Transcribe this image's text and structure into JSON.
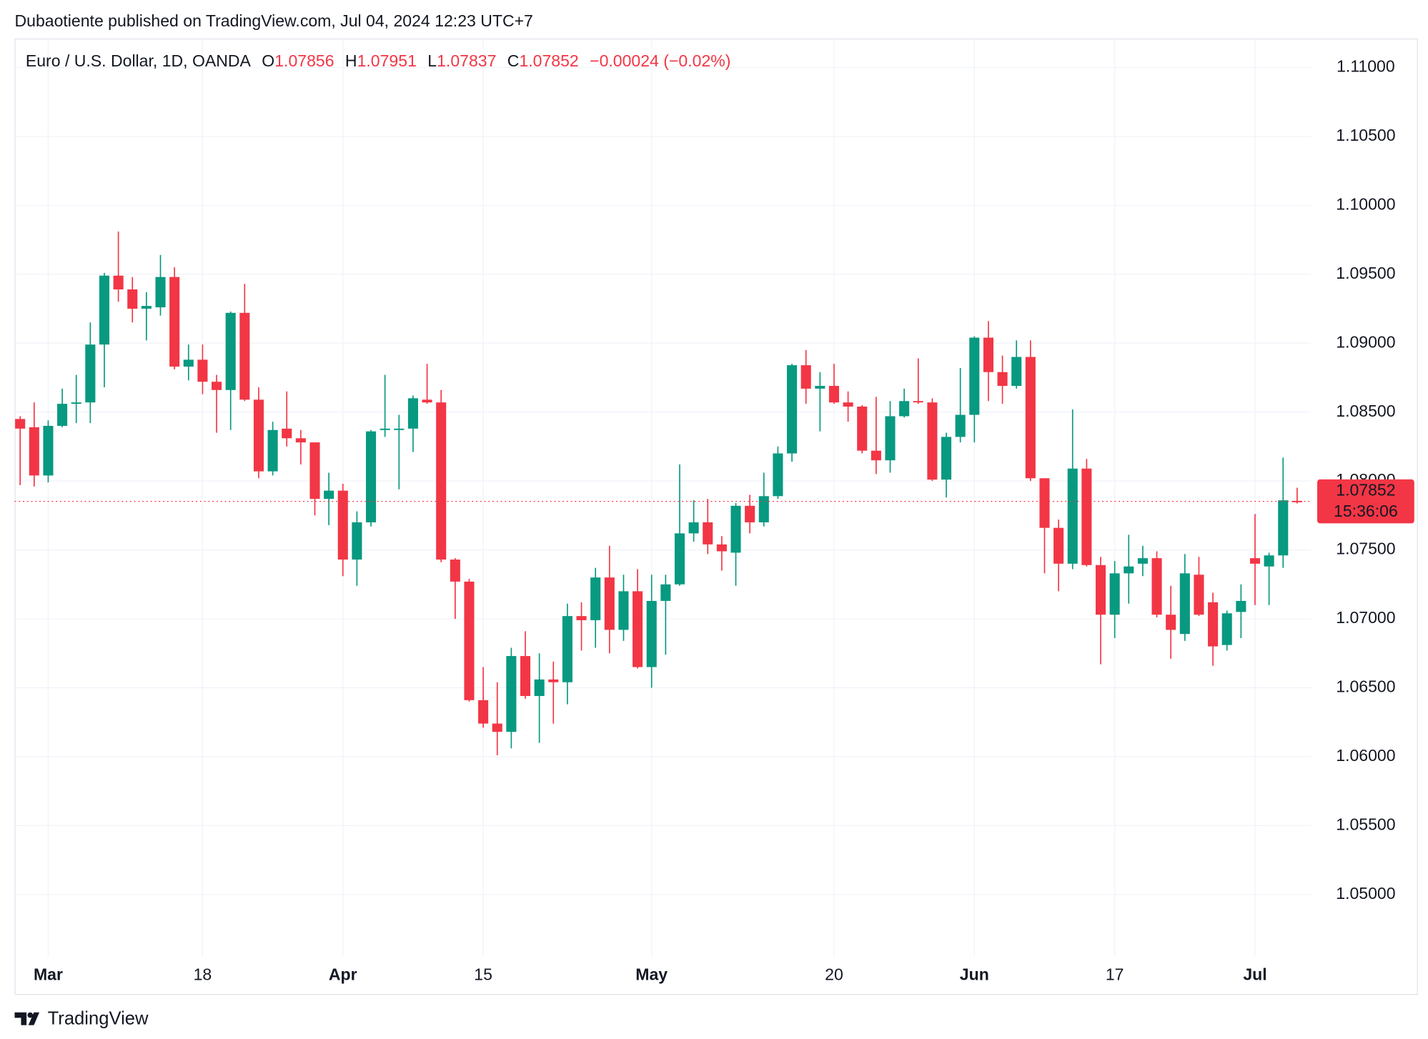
{
  "attribution": "Dubaotiente published on TradingView.com, Jul 04, 2024 12:23 UTC+7",
  "footer": "TradingView",
  "chart_data": {
    "type": "candlestick",
    "symbol": "Euro / U.S. Dollar, 1D, OANDA",
    "ohlc_labels": [
      "O",
      "H",
      "L",
      "C"
    ],
    "change": "−0.00024 (−0.02%)",
    "countdown": "15:36:06",
    "up_color": "#089981",
    "down_color": "#f23645",
    "grid": true,
    "categories": [
      null,
      null,
      "Mar",
      null,
      null,
      null,
      null,
      null,
      null,
      null,
      null,
      null,
      null,
      "18",
      null,
      null,
      null,
      null,
      null,
      null,
      null,
      null,
      null,
      "Apr",
      null,
      null,
      null,
      null,
      null,
      null,
      null,
      null,
      null,
      "15",
      null,
      null,
      null,
      null,
      null,
      null,
      null,
      null,
      null,
      null,
      null,
      "May",
      null,
      null,
      null,
      null,
      null,
      null,
      null,
      null,
      null,
      null,
      null,
      null,
      "20",
      null,
      null,
      null,
      null,
      null,
      null,
      null,
      null,
      null,
      "Jun",
      null,
      null,
      null,
      null,
      null,
      null,
      null,
      null,
      null,
      "17",
      null,
      null,
      null,
      null,
      null,
      null,
      null,
      null,
      null,
      "Jul",
      null,
      null,
      null
    ],
    "open": [
      1.0845,
      1.0839,
      1.0804,
      1.084,
      1.0856,
      1.0857,
      1.0899,
      1.0949,
      1.0939,
      1.0925,
      1.0926,
      1.0948,
      1.0883,
      1.0888,
      1.0872,
      1.0866,
      1.0922,
      1.0859,
      1.0807,
      1.0838,
      1.0831,
      1.0828,
      1.0787,
      1.0793,
      1.0743,
      1.077,
      1.0837,
      1.0837,
      1.0838,
      1.0859,
      1.0857,
      1.0743,
      1.0727,
      1.0641,
      1.0624,
      1.0618,
      1.0673,
      1.0644,
      1.0656,
      1.0654,
      1.0702,
      1.0699,
      1.073,
      1.0692,
      1.072,
      1.0665,
      1.0713,
      1.0725,
      1.0762,
      1.077,
      1.0754,
      1.0748,
      1.0782,
      1.077,
      1.0789,
      1.082,
      1.0884,
      1.0867,
      1.0869,
      1.0857,
      1.0854,
      1.0822,
      1.0815,
      1.0847,
      1.0858,
      1.0857,
      1.0801,
      1.0832,
      1.0848,
      1.0904,
      1.0879,
      1.0869,
      1.089,
      1.0802,
      1.0766,
      1.074,
      1.0809,
      1.0739,
      1.0703,
      1.0733,
      1.074,
      1.0744,
      1.0703,
      1.0689,
      1.0732,
      1.0712,
      1.0681,
      1.0705,
      1.0744,
      1.0738,
      1.0746,
      1.07856
    ],
    "high": [
      1.0847,
      1.0857,
      1.0844,
      1.0867,
      1.0877,
      1.0915,
      1.0951,
      1.0981,
      1.0948,
      1.0937,
      1.0964,
      1.0955,
      1.0899,
      1.0899,
      1.0877,
      1.0923,
      1.0943,
      1.0868,
      1.0843,
      1.0865,
      1.0837,
      1.0828,
      1.0806,
      1.0798,
      1.0778,
      1.0837,
      1.0877,
      1.0848,
      1.0862,
      1.0885,
      1.0866,
      1.0744,
      1.0729,
      1.0665,
      1.0654,
      1.0679,
      1.0691,
      1.0675,
      1.0669,
      1.0711,
      1.0712,
      1.0737,
      1.0753,
      1.0732,
      1.0736,
      1.0732,
      1.0732,
      1.0812,
      1.0786,
      1.0787,
      1.076,
      1.0784,
      1.079,
      1.0806,
      1.0825,
      1.0885,
      1.0895,
      1.0879,
      1.0885,
      1.0865,
      1.0855,
      1.0861,
      1.0858,
      1.0867,
      1.0889,
      1.086,
      1.0835,
      1.0882,
      1.0905,
      1.0916,
      1.0891,
      1.0902,
      1.0902,
      1.0802,
      1.0772,
      1.0852,
      1.0816,
      1.0745,
      1.0742,
      1.0761,
      1.0753,
      1.0749,
      1.0724,
      1.0747,
      1.0745,
      1.0719,
      1.0706,
      1.0725,
      1.0776,
      1.0748,
      1.0817,
      1.07951
    ],
    "low": [
      1.0797,
      1.0796,
      1.0799,
      1.0839,
      1.0842,
      1.0842,
      1.0868,
      1.093,
      1.0915,
      1.0902,
      1.092,
      1.0881,
      1.0873,
      1.0863,
      1.0835,
      1.0837,
      1.0858,
      1.0802,
      1.0804,
      1.0825,
      1.0812,
      1.0775,
      1.0768,
      1.0731,
      1.0724,
      1.0767,
      1.0832,
      1.0794,
      1.0821,
      1.0856,
      1.0741,
      1.07,
      1.064,
      1.0621,
      1.0601,
      1.0606,
      1.0642,
      1.061,
      1.0624,
      1.0638,
      1.0677,
      1.0679,
      1.0675,
      1.0684,
      1.0664,
      1.065,
      1.0674,
      1.0724,
      1.0756,
      1.0747,
      1.0735,
      1.0724,
      1.0762,
      1.0767,
      1.0787,
      1.0814,
      1.0856,
      1.0836,
      1.0856,
      1.0843,
      1.082,
      1.0805,
      1.0806,
      1.0846,
      1.0856,
      1.08,
      1.0788,
      1.0828,
      1.0828,
      1.0858,
      1.0856,
      1.0867,
      1.08,
      1.0733,
      1.072,
      1.0736,
      1.0738,
      1.0667,
      1.0686,
      1.0711,
      1.0731,
      1.0701,
      1.0671,
      1.0684,
      1.0702,
      1.0666,
      1.0677,
      1.0686,
      1.071,
      1.071,
      1.0737,
      1.07837
    ],
    "close": [
      1.0838,
      1.0804,
      1.084,
      1.0856,
      1.0857,
      1.0899,
      1.0949,
      1.0939,
      1.0925,
      1.0927,
      1.0948,
      1.0883,
      1.0888,
      1.0872,
      1.0866,
      1.0922,
      1.0859,
      1.0807,
      1.0837,
      1.0831,
      1.0828,
      1.0787,
      1.0793,
      1.0743,
      1.077,
      1.0836,
      1.0838,
      1.0838,
      1.086,
      1.0857,
      1.0743,
      1.0727,
      1.0641,
      1.0624,
      1.0618,
      1.0673,
      1.0644,
      1.0656,
      1.0654,
      1.0702,
      1.0699,
      1.073,
      1.0692,
      1.072,
      1.0665,
      1.0713,
      1.0725,
      1.0762,
      1.077,
      1.0754,
      1.0749,
      1.0782,
      1.077,
      1.0789,
      1.082,
      1.0884,
      1.0867,
      1.0869,
      1.0857,
      1.0854,
      1.0822,
      1.0815,
      1.0847,
      1.0858,
      1.0857,
      1.0801,
      1.0832,
      1.0848,
      1.0904,
      1.0879,
      1.0869,
      1.089,
      1.0802,
      1.0766,
      1.074,
      1.0809,
      1.0739,
      1.0703,
      1.0733,
      1.0738,
      1.0744,
      1.0703,
      1.0692,
      1.0733,
      1.0703,
      1.068,
      1.0704,
      1.0713,
      1.074,
      1.0746,
      1.0786,
      1.07852
    ],
    "ylim": [
      1.0455,
      1.1121
    ],
    "yticks": [
      {
        "value": 1.05,
        "label": "1.05000"
      },
      {
        "value": 1.055,
        "label": "1.05500"
      },
      {
        "value": 1.06,
        "label": "1.06000"
      },
      {
        "value": 1.065,
        "label": "1.06500"
      },
      {
        "value": 1.07,
        "label": "1.07000"
      },
      {
        "value": 1.075,
        "label": "1.07500"
      },
      {
        "value": 1.08,
        "label": "1.08000"
      },
      {
        "value": 1.085,
        "label": "1.08500"
      },
      {
        "value": 1.09,
        "label": "1.09000"
      },
      {
        "value": 1.095,
        "label": "1.09500"
      },
      {
        "value": 1.1,
        "label": "1.10000"
      },
      {
        "value": 1.105,
        "label": "1.10500"
      },
      {
        "value": 1.11,
        "label": "1.11000"
      }
    ]
  }
}
